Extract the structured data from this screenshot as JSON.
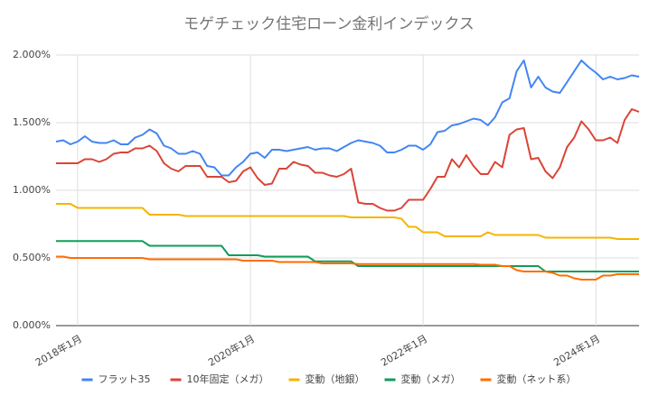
{
  "chart_data": {
    "type": "line",
    "title": "モゲチェック住宅ローン金利インデックス",
    "x": [
      "2017-10",
      "2017-11",
      "2017-12",
      "2018-01",
      "2018-02",
      "2018-03",
      "2018-04",
      "2018-05",
      "2018-06",
      "2018-07",
      "2018-08",
      "2018-09",
      "2018-10",
      "2018-11",
      "2018-12",
      "2019-01",
      "2019-02",
      "2019-03",
      "2019-04",
      "2019-05",
      "2019-06",
      "2019-07",
      "2019-08",
      "2019-09",
      "2019-10",
      "2019-11",
      "2019-12",
      "2020-01",
      "2020-02",
      "2020-03",
      "2020-04",
      "2020-05",
      "2020-06",
      "2020-07",
      "2020-08",
      "2020-09",
      "2020-10",
      "2020-11",
      "2020-12",
      "2021-01",
      "2021-02",
      "2021-03",
      "2021-04",
      "2021-05",
      "2021-06",
      "2021-07",
      "2021-08",
      "2021-09",
      "2021-10",
      "2021-11",
      "2021-12",
      "2022-01",
      "2022-02",
      "2022-03",
      "2022-04",
      "2022-05",
      "2022-06",
      "2022-07",
      "2022-08",
      "2022-09",
      "2022-10",
      "2022-11",
      "2022-12",
      "2023-01",
      "2023-02",
      "2023-03",
      "2023-04",
      "2023-05",
      "2023-06",
      "2023-07",
      "2023-08",
      "2023-09",
      "2023-10",
      "2023-11",
      "2023-12",
      "2024-01",
      "2024-02",
      "2024-03",
      "2024-04",
      "2024-05",
      "2024-06",
      "2024-07"
    ],
    "series": [
      {
        "name": "フラット35",
        "color": "#4285f4",
        "values": [
          1.36,
          1.37,
          1.34,
          1.36,
          1.4,
          1.36,
          1.35,
          1.35,
          1.37,
          1.34,
          1.34,
          1.39,
          1.41,
          1.45,
          1.42,
          1.33,
          1.31,
          1.27,
          1.27,
          1.29,
          1.27,
          1.18,
          1.17,
          1.11,
          1.11,
          1.17,
          1.21,
          1.27,
          1.28,
          1.24,
          1.3,
          1.3,
          1.29,
          1.3,
          1.31,
          1.32,
          1.3,
          1.31,
          1.31,
          1.29,
          1.32,
          1.35,
          1.37,
          1.36,
          1.35,
          1.33,
          1.28,
          1.28,
          1.3,
          1.33,
          1.33,
          1.3,
          1.34,
          1.43,
          1.44,
          1.48,
          1.49,
          1.51,
          1.53,
          1.52,
          1.48,
          1.54,
          1.65,
          1.68,
          1.88,
          1.96,
          1.76,
          1.84,
          1.76,
          1.73,
          1.72,
          1.8,
          1.88,
          1.96,
          1.91,
          1.87,
          1.82,
          1.84,
          1.82,
          1.83,
          1.85,
          1.84
        ]
      },
      {
        "name": "10年固定（メガ）",
        "color": "#db4437",
        "values": [
          1.2,
          1.2,
          1.2,
          1.2,
          1.23,
          1.23,
          1.21,
          1.23,
          1.27,
          1.28,
          1.28,
          1.31,
          1.31,
          1.33,
          1.29,
          1.2,
          1.16,
          1.14,
          1.18,
          1.18,
          1.18,
          1.1,
          1.1,
          1.1,
          1.06,
          1.07,
          1.14,
          1.17,
          1.09,
          1.04,
          1.05,
          1.16,
          1.16,
          1.21,
          1.19,
          1.18,
          1.13,
          1.13,
          1.11,
          1.1,
          1.12,
          1.16,
          0.91,
          0.9,
          0.9,
          0.87,
          0.85,
          0.85,
          0.87,
          0.93,
          0.93,
          0.93,
          1.01,
          1.1,
          1.1,
          1.23,
          1.17,
          1.26,
          1.18,
          1.12,
          1.12,
          1.21,
          1.17,
          1.41,
          1.45,
          1.46,
          1.23,
          1.24,
          1.14,
          1.09,
          1.17,
          1.32,
          1.39,
          1.51,
          1.45,
          1.37,
          1.37,
          1.39,
          1.35,
          1.52,
          1.6,
          1.58
        ]
      },
      {
        "name": "変動（地銀）",
        "color": "#f4b400",
        "values": [
          0.9,
          0.9,
          0.9,
          0.87,
          0.87,
          0.87,
          0.87,
          0.87,
          0.87,
          0.87,
          0.87,
          0.87,
          0.87,
          0.82,
          0.82,
          0.82,
          0.82,
          0.82,
          0.81,
          0.81,
          0.81,
          0.81,
          0.81,
          0.81,
          0.81,
          0.81,
          0.81,
          0.81,
          0.81,
          0.81,
          0.81,
          0.81,
          0.81,
          0.81,
          0.81,
          0.81,
          0.81,
          0.81,
          0.81,
          0.81,
          0.81,
          0.8,
          0.8,
          0.8,
          0.8,
          0.8,
          0.8,
          0.8,
          0.79,
          0.73,
          0.73,
          0.69,
          0.69,
          0.69,
          0.66,
          0.66,
          0.66,
          0.66,
          0.66,
          0.66,
          0.69,
          0.67,
          0.67,
          0.67,
          0.67,
          0.67,
          0.67,
          0.67,
          0.65,
          0.65,
          0.65,
          0.65,
          0.65,
          0.65,
          0.65,
          0.65,
          0.65,
          0.65,
          0.64,
          0.64,
          0.64,
          0.64
        ]
      },
      {
        "name": "変動（メガ）",
        "color": "#0f9d58",
        "values": [
          0.625,
          0.625,
          0.625,
          0.625,
          0.625,
          0.625,
          0.625,
          0.625,
          0.625,
          0.625,
          0.625,
          0.625,
          0.625,
          0.59,
          0.59,
          0.59,
          0.59,
          0.59,
          0.59,
          0.59,
          0.59,
          0.59,
          0.59,
          0.59,
          0.52,
          0.52,
          0.52,
          0.52,
          0.52,
          0.51,
          0.51,
          0.51,
          0.51,
          0.51,
          0.51,
          0.51,
          0.475,
          0.475,
          0.475,
          0.475,
          0.475,
          0.475,
          0.44,
          0.44,
          0.44,
          0.44,
          0.44,
          0.44,
          0.44,
          0.44,
          0.44,
          0.44,
          0.44,
          0.44,
          0.44,
          0.44,
          0.44,
          0.44,
          0.44,
          0.44,
          0.44,
          0.44,
          0.44,
          0.44,
          0.44,
          0.44,
          0.44,
          0.44,
          0.4,
          0.4,
          0.4,
          0.4,
          0.4,
          0.4,
          0.4,
          0.4,
          0.4,
          0.4,
          0.4,
          0.4,
          0.4,
          0.4
        ]
      },
      {
        "name": "変動（ネット系）",
        "color": "#ff6d01",
        "values": [
          0.51,
          0.51,
          0.5,
          0.5,
          0.5,
          0.5,
          0.5,
          0.5,
          0.5,
          0.5,
          0.5,
          0.5,
          0.5,
          0.49,
          0.49,
          0.49,
          0.49,
          0.49,
          0.49,
          0.49,
          0.49,
          0.49,
          0.49,
          0.49,
          0.49,
          0.49,
          0.48,
          0.48,
          0.48,
          0.48,
          0.48,
          0.47,
          0.47,
          0.47,
          0.47,
          0.47,
          0.47,
          0.46,
          0.46,
          0.46,
          0.46,
          0.46,
          0.455,
          0.455,
          0.455,
          0.455,
          0.455,
          0.455,
          0.455,
          0.455,
          0.455,
          0.455,
          0.455,
          0.455,
          0.455,
          0.455,
          0.455,
          0.455,
          0.455,
          0.45,
          0.45,
          0.45,
          0.44,
          0.44,
          0.41,
          0.4,
          0.4,
          0.4,
          0.4,
          0.39,
          0.37,
          0.37,
          0.35,
          0.34,
          0.34,
          0.34,
          0.37,
          0.37,
          0.38,
          0.38,
          0.38,
          0.38
        ]
      }
    ],
    "xlim": [
      "2017-10",
      "2024-07"
    ],
    "xticks": [
      {
        "value": "2018-01",
        "label": "2018年1月"
      },
      {
        "value": "2020-01",
        "label": "2020年1月"
      },
      {
        "value": "2022-01",
        "label": "2022年1月"
      },
      {
        "value": "2024-01",
        "label": "2024年1月"
      }
    ],
    "ylim": [
      0,
      2
    ],
    "yticks": [
      {
        "value": 0,
        "label": "0.000%"
      },
      {
        "value": 0.5,
        "label": "0.500%"
      },
      {
        "value": 1,
        "label": "1.000%"
      },
      {
        "value": 1.5,
        "label": "1.500%"
      },
      {
        "value": 2,
        "label": "2.000%"
      }
    ],
    "grid": true,
    "legend": "bottom"
  }
}
